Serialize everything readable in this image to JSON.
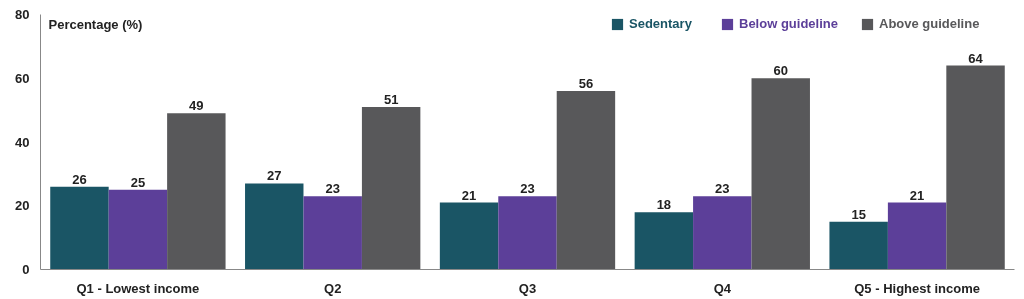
{
  "chart_data": {
    "type": "bar",
    "ylabel": "Percentage (%)",
    "categories": [
      "Q1 - Lowest income",
      "Q2",
      "Q3",
      "Q4",
      "Q5 - Highest income"
    ],
    "series": [
      {
        "name": "Sedentary",
        "color": "#1a5565",
        "values": [
          26,
          27,
          21,
          18,
          15
        ]
      },
      {
        "name": "Below guideline",
        "color": "#5c3f99",
        "values": [
          25,
          23,
          23,
          23,
          21
        ]
      },
      {
        "name": "Above guideline",
        "color": "#58585a",
        "values": [
          49,
          51,
          56,
          60,
          64
        ]
      }
    ],
    "ylim": [
      0,
      80
    ],
    "yticks": [
      0,
      20,
      40,
      60,
      80
    ],
    "grid": false,
    "legend": "top right",
    "data_labels": true
  }
}
